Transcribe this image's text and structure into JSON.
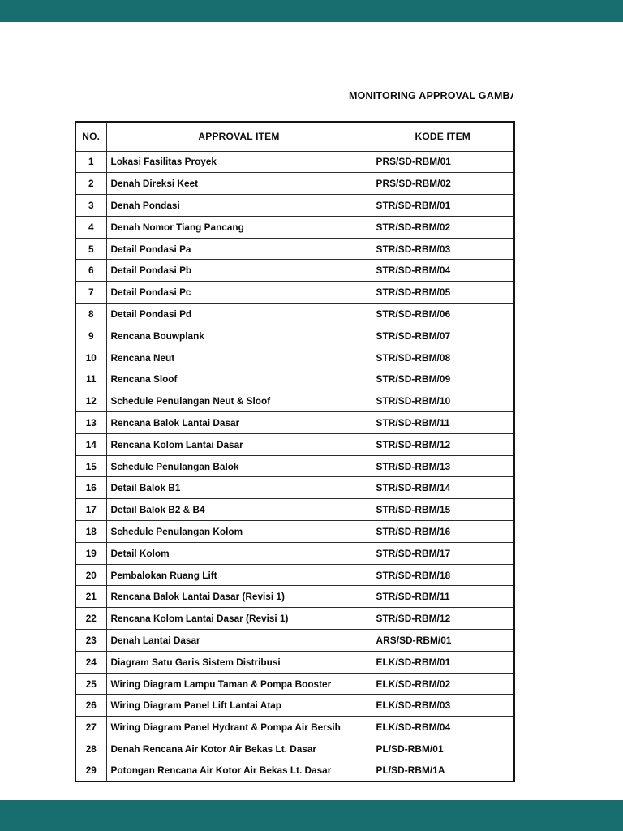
{
  "colors": {
    "viewer_chrome": "#186d6f",
    "page_background": "#ffffff",
    "table_border": "#141414",
    "text": "#0c0c0c"
  },
  "document": {
    "title": "MONITORING APPROVAL GAMBAR",
    "table": {
      "headers": [
        "NO.",
        "APPROVAL ITEM",
        "KODE ITEM"
      ],
      "rows": [
        {
          "no": "1",
          "item": "Lokasi Fasilitas Proyek",
          "code": "PRS/SD-RBM/01"
        },
        {
          "no": "2",
          "item": "Denah Direksi Keet",
          "code": "PRS/SD-RBM/02"
        },
        {
          "no": "3",
          "item": "Denah Pondasi",
          "code": "STR/SD-RBM/01"
        },
        {
          "no": "4",
          "item": "Denah Nomor Tiang Pancang",
          "code": "STR/SD-RBM/02"
        },
        {
          "no": "5",
          "item": "Detail Pondasi Pa",
          "code": "STR/SD-RBM/03"
        },
        {
          "no": "6",
          "item": "Detail Pondasi Pb",
          "code": "STR/SD-RBM/04"
        },
        {
          "no": "7",
          "item": "Detail Pondasi Pc",
          "code": "STR/SD-RBM/05"
        },
        {
          "no": "8",
          "item": "Detail Pondasi Pd",
          "code": "STR/SD-RBM/06"
        },
        {
          "no": "9",
          "item": "Rencana Bouwplank",
          "code": "STR/SD-RBM/07"
        },
        {
          "no": "10",
          "item": "Rencana Neut",
          "code": "STR/SD-RBM/08"
        },
        {
          "no": "11",
          "item": "Rencana Sloof",
          "code": "STR/SD-RBM/09"
        },
        {
          "no": "12",
          "item": "Schedule Penulangan Neut & Sloof",
          "code": "STR/SD-RBM/10"
        },
        {
          "no": "13",
          "item": "Rencana Balok Lantai Dasar",
          "code": "STR/SD-RBM/11"
        },
        {
          "no": "14",
          "item": "Rencana Kolom Lantai Dasar",
          "code": "STR/SD-RBM/12"
        },
        {
          "no": "15",
          "item": "Schedule Penulangan Balok",
          "code": "STR/SD-RBM/13"
        },
        {
          "no": "16",
          "item": "Detail Balok B1",
          "code": "STR/SD-RBM/14"
        },
        {
          "no": "17",
          "item": "Detail Balok B2 & B4",
          "code": "STR/SD-RBM/15"
        },
        {
          "no": "18",
          "item": "Schedule Penulangan Kolom",
          "code": "STR/SD-RBM/16"
        },
        {
          "no": "19",
          "item": "Detail Kolom",
          "code": "STR/SD-RBM/17"
        },
        {
          "no": "20",
          "item": "Pembalokan Ruang Lift",
          "code": "STR/SD-RBM/18"
        },
        {
          "no": "21",
          "item": "Rencana Balok Lantai Dasar (Revisi 1)",
          "code": "STR/SD-RBM/11"
        },
        {
          "no": "22",
          "item": "Rencana Kolom Lantai Dasar (Revisi 1)",
          "code": "STR/SD-RBM/12"
        },
        {
          "no": "23",
          "item": "Denah Lantai Dasar",
          "code": "ARS/SD-RBM/01"
        },
        {
          "no": "24",
          "item": "Diagram Satu Garis Sistem Distribusi",
          "code": "ELK/SD-RBM/01"
        },
        {
          "no": "25",
          "item": "Wiring Diagram Lampu Taman & Pompa Booster",
          "code": "ELK/SD-RBM/02"
        },
        {
          "no": "26",
          "item": "Wiring Diagram Panel Lift Lantai Atap",
          "code": "ELK/SD-RBM/03"
        },
        {
          "no": "27",
          "item": "Wiring Diagram Panel Hydrant & Pompa Air Bersih",
          "code": "ELK/SD-RBM/04"
        },
        {
          "no": "28",
          "item": "Denah Rencana Air Kotor Air Bekas Lt. Dasar",
          "code": "PL/SD-RBM/01"
        },
        {
          "no": "29",
          "item": "Potongan Rencana Air Kotor Air Bekas Lt. Dasar",
          "code": "PL/SD-RBM/1A"
        }
      ]
    }
  }
}
